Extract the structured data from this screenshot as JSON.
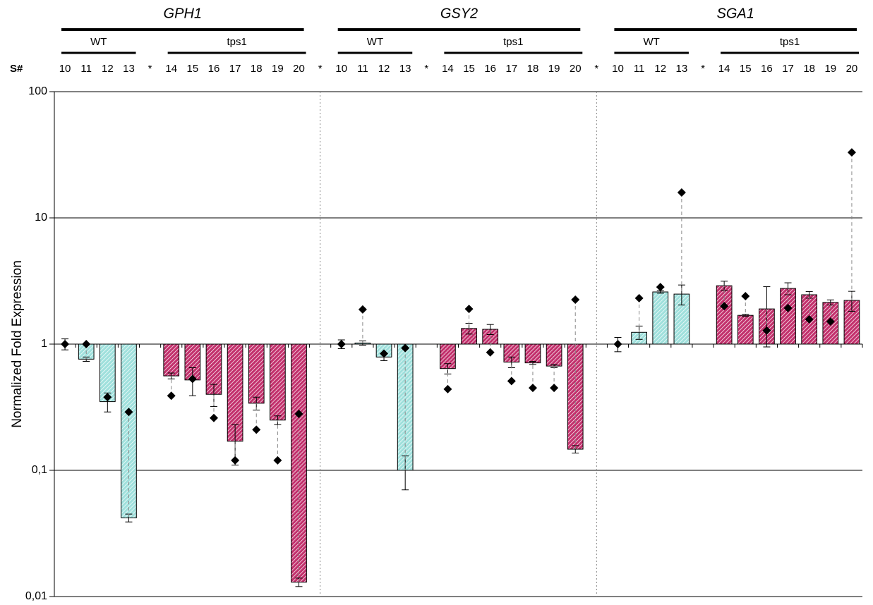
{
  "chart_data": {
    "type": "bar",
    "y_label": "Normalized Fold Expression",
    "x_label": "S#",
    "log_scale": true,
    "grid": true,
    "ylim": [
      0.01,
      100
    ],
    "yticks": [
      {
        "value": 0.01,
        "label": "0,01"
      },
      {
        "value": 0.1,
        "label": "0,1"
      },
      1,
      10,
      100
    ],
    "panels": [
      {
        "title": "GPH1",
        "categories": [
          "10",
          "11",
          "12",
          "13",
          "*",
          "14",
          "15",
          "16",
          "17",
          "18",
          "19",
          "20",
          "*"
        ],
        "series": [
          {
            "name": "WT",
            "color": "#9fe0dc",
            "values": [
              1,
              0.76,
              0.35,
              0.042,
              null,
              null,
              null,
              null,
              null,
              null,
              null,
              null,
              null
            ],
            "errors": [
              0.1,
              0.03,
              0.06,
              0.003,
              null,
              null,
              null,
              null,
              null,
              null,
              null,
              null,
              null
            ],
            "markers": [
              1,
              1,
              0.38,
              0.29,
              null,
              null,
              null,
              null,
              null,
              null,
              null,
              null,
              null
            ]
          },
          {
            "name": "tps1",
            "color": "#c2306c",
            "values": [
              null,
              null,
              null,
              null,
              null,
              0.56,
              0.52,
              0.4,
              0.17,
              0.34,
              0.25,
              0.013,
              null
            ],
            "errors": [
              null,
              null,
              null,
              null,
              null,
              0.03,
              0.13,
              0.08,
              0.06,
              0.04,
              0.02,
              0.001,
              null
            ],
            "markers": [
              null,
              null,
              null,
              null,
              null,
              0.39,
              0.53,
              0.26,
              0.12,
              0.21,
              0.12,
              0.28,
              null
            ]
          }
        ]
      },
      {
        "title": "GSY2",
        "categories": [
          "10",
          "11",
          "12",
          "13",
          "*",
          "14",
          "15",
          "16",
          "17",
          "18",
          "19",
          "20",
          "*"
        ],
        "series": [
          {
            "name": "WT",
            "color": "#9fe0dc",
            "values": [
              1,
              1.02,
              0.79,
              0.1,
              null,
              null,
              null,
              null,
              null,
              null,
              null,
              null,
              null
            ],
            "errors": [
              0.08,
              0.04,
              0.05,
              0.03,
              null,
              null,
              null,
              null,
              null,
              null,
              null,
              null,
              null
            ],
            "markers": [
              1,
              1.88,
              0.84,
              0.93,
              null,
              null,
              null,
              null,
              null,
              null,
              null,
              null,
              null
            ]
          },
          {
            "name": "tps1",
            "color": "#c2306c",
            "values": [
              null,
              null,
              null,
              null,
              null,
              0.64,
              1.33,
              1.31,
              0.72,
              0.71,
              0.67,
              0.147,
              null
            ],
            "errors": [
              null,
              null,
              null,
              null,
              null,
              0.06,
              0.13,
              0.12,
              0.07,
              0.02,
              0.02,
              0.01,
              null
            ],
            "markers": [
              null,
              null,
              null,
              null,
              null,
              0.44,
              1.9,
              0.86,
              0.51,
              0.45,
              0.45,
              2.25,
              null
            ]
          }
        ]
      },
      {
        "title": "SGA1",
        "categories": [
          "10",
          "11",
          "12",
          "13",
          "*",
          "14",
          "15",
          "16",
          "17",
          "18",
          "19",
          "20"
        ],
        "series": [
          {
            "name": "WT",
            "color": "#9fe0dc",
            "values": [
              1,
              1.24,
              2.59,
              2.49,
              null,
              null,
              null,
              null,
              null,
              null,
              null,
              null
            ],
            "errors": [
              0.13,
              0.15,
              0.06,
              0.45,
              null,
              null,
              null,
              null,
              null,
              null,
              null,
              null
            ],
            "markers": [
              1,
              2.31,
              2.83,
              15.9,
              null,
              null,
              null,
              null,
              null,
              null,
              null,
              null
            ]
          },
          {
            "name": "tps1",
            "color": "#c2306c",
            "values": [
              null,
              null,
              null,
              null,
              null,
              2.9,
              1.69,
              1.9,
              2.76,
              2.46,
              2.14,
              2.22
            ],
            "errors": [
              null,
              null,
              null,
              null,
              null,
              0.25,
              0.03,
              0.95,
              0.3,
              0.15,
              0.1,
              0.4
            ],
            "markers": [
              null,
              null,
              null,
              null,
              null,
              2.0,
              2.4,
              1.28,
              1.93,
              1.57,
              1.51,
              33
            ]
          }
        ]
      }
    ]
  }
}
